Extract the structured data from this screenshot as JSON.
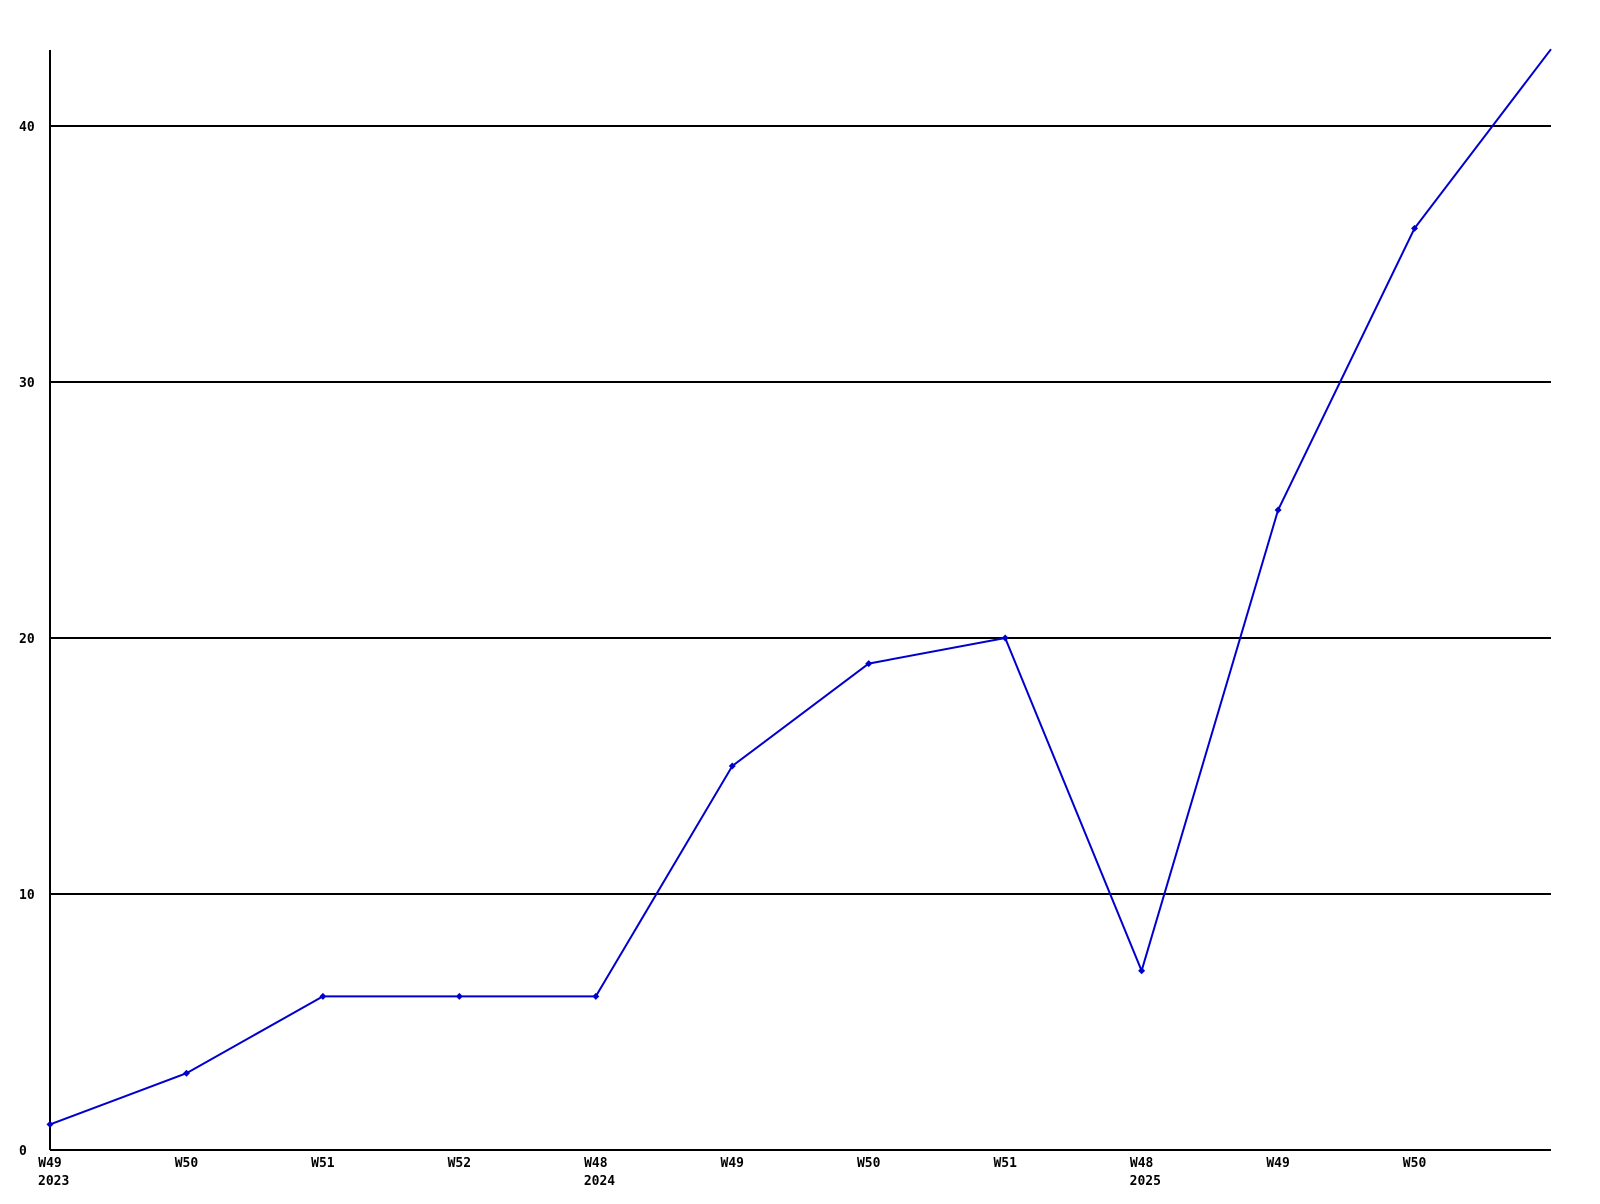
{
  "chart_data": {
    "type": "line",
    "title": "",
    "xlabel": "",
    "ylabel": "",
    "ylim": [
      0,
      43
    ],
    "yticks": [
      0,
      10,
      20,
      30,
      40
    ],
    "grid": "horizontal",
    "legend": "none",
    "line_color": "#0000cc",
    "axis_color": "#000000",
    "background_color": "#ffffff",
    "marker": "diamond",
    "categories": [
      "W49",
      "W50",
      "W51",
      "W52",
      "W48",
      "W49",
      "W50",
      "W51",
      "W48",
      "W49",
      "W50",
      ""
    ],
    "year_sublabels": [
      "2023",
      "",
      "",
      "",
      "2024",
      "",
      "",
      "",
      "2025",
      "",
      "",
      ""
    ],
    "values": [
      1,
      3,
      6,
      6,
      6,
      15,
      19,
      20,
      7,
      25,
      36,
      43
    ],
    "points": [
      {
        "week": "W49",
        "year": "2023",
        "value": 1,
        "marker": true
      },
      {
        "week": "W50",
        "year": "",
        "value": 3,
        "marker": true
      },
      {
        "week": "W51",
        "year": "",
        "value": 6,
        "marker": true
      },
      {
        "week": "W52",
        "year": "",
        "value": 6,
        "marker": true
      },
      {
        "week": "W48",
        "year": "2024",
        "value": 6,
        "marker": true
      },
      {
        "week": "W49",
        "year": "",
        "value": 15,
        "marker": true
      },
      {
        "week": "W50",
        "year": "",
        "value": 19,
        "marker": true
      },
      {
        "week": "W51",
        "year": "",
        "value": 20,
        "marker": true
      },
      {
        "week": "W48",
        "year": "2025",
        "value": 7,
        "marker": true
      },
      {
        "week": "W49",
        "year": "",
        "value": 25,
        "marker": true
      },
      {
        "week": "W50",
        "year": "",
        "value": 36,
        "marker": true
      },
      {
        "week": "",
        "year": "",
        "value": 43,
        "marker": false
      }
    ]
  }
}
